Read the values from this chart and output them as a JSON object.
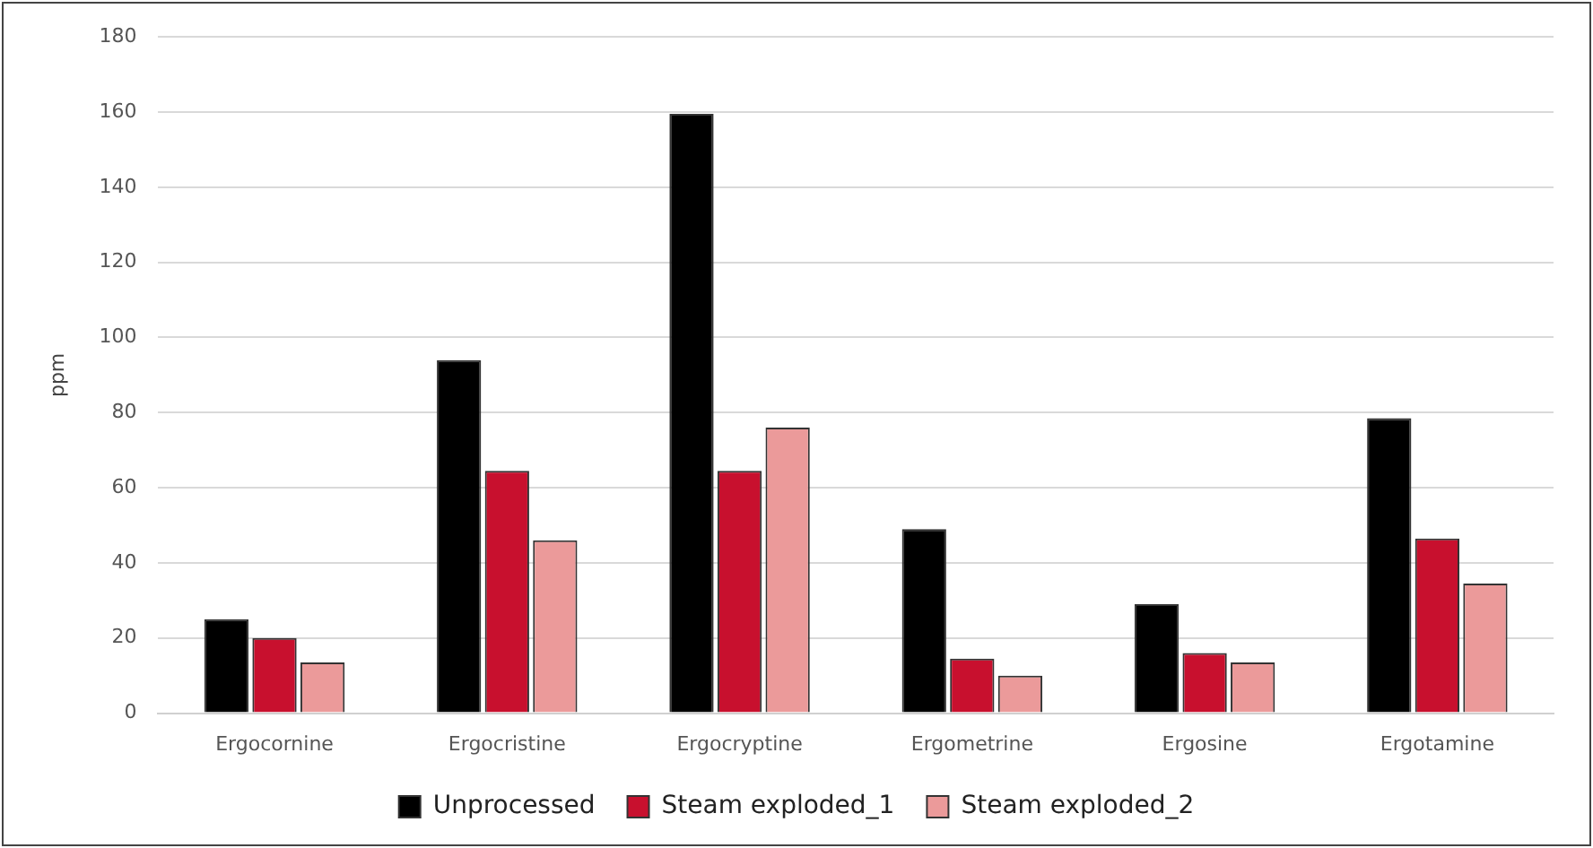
{
  "chart_data": {
    "type": "bar",
    "ylabel": "ppm",
    "categories": [
      "Ergocornine",
      "Ergocristine",
      "Ergocryptine",
      "Ergometrine",
      "Ergosine",
      "Ergotamine"
    ],
    "series": [
      {
        "name": "Unprocessed",
        "color": "#000000",
        "values": [
          25,
          94,
          159.5,
          49,
          29,
          78.5
        ]
      },
      {
        "name": "Steam exploded_1",
        "color": "#c8102e",
        "values": [
          20,
          64.5,
          64.5,
          14.5,
          16,
          46.5
        ]
      },
      {
        "name": "Steam exploded_2",
        "color": "#eb9a9a",
        "values": [
          13.5,
          46,
          76,
          10,
          13.5,
          34.5
        ]
      }
    ],
    "ylim": [
      0,
      180
    ],
    "yticks": [
      0,
      20,
      40,
      60,
      80,
      100,
      120,
      140,
      160,
      180
    ],
    "grid": "y",
    "legend": "bottom"
  }
}
